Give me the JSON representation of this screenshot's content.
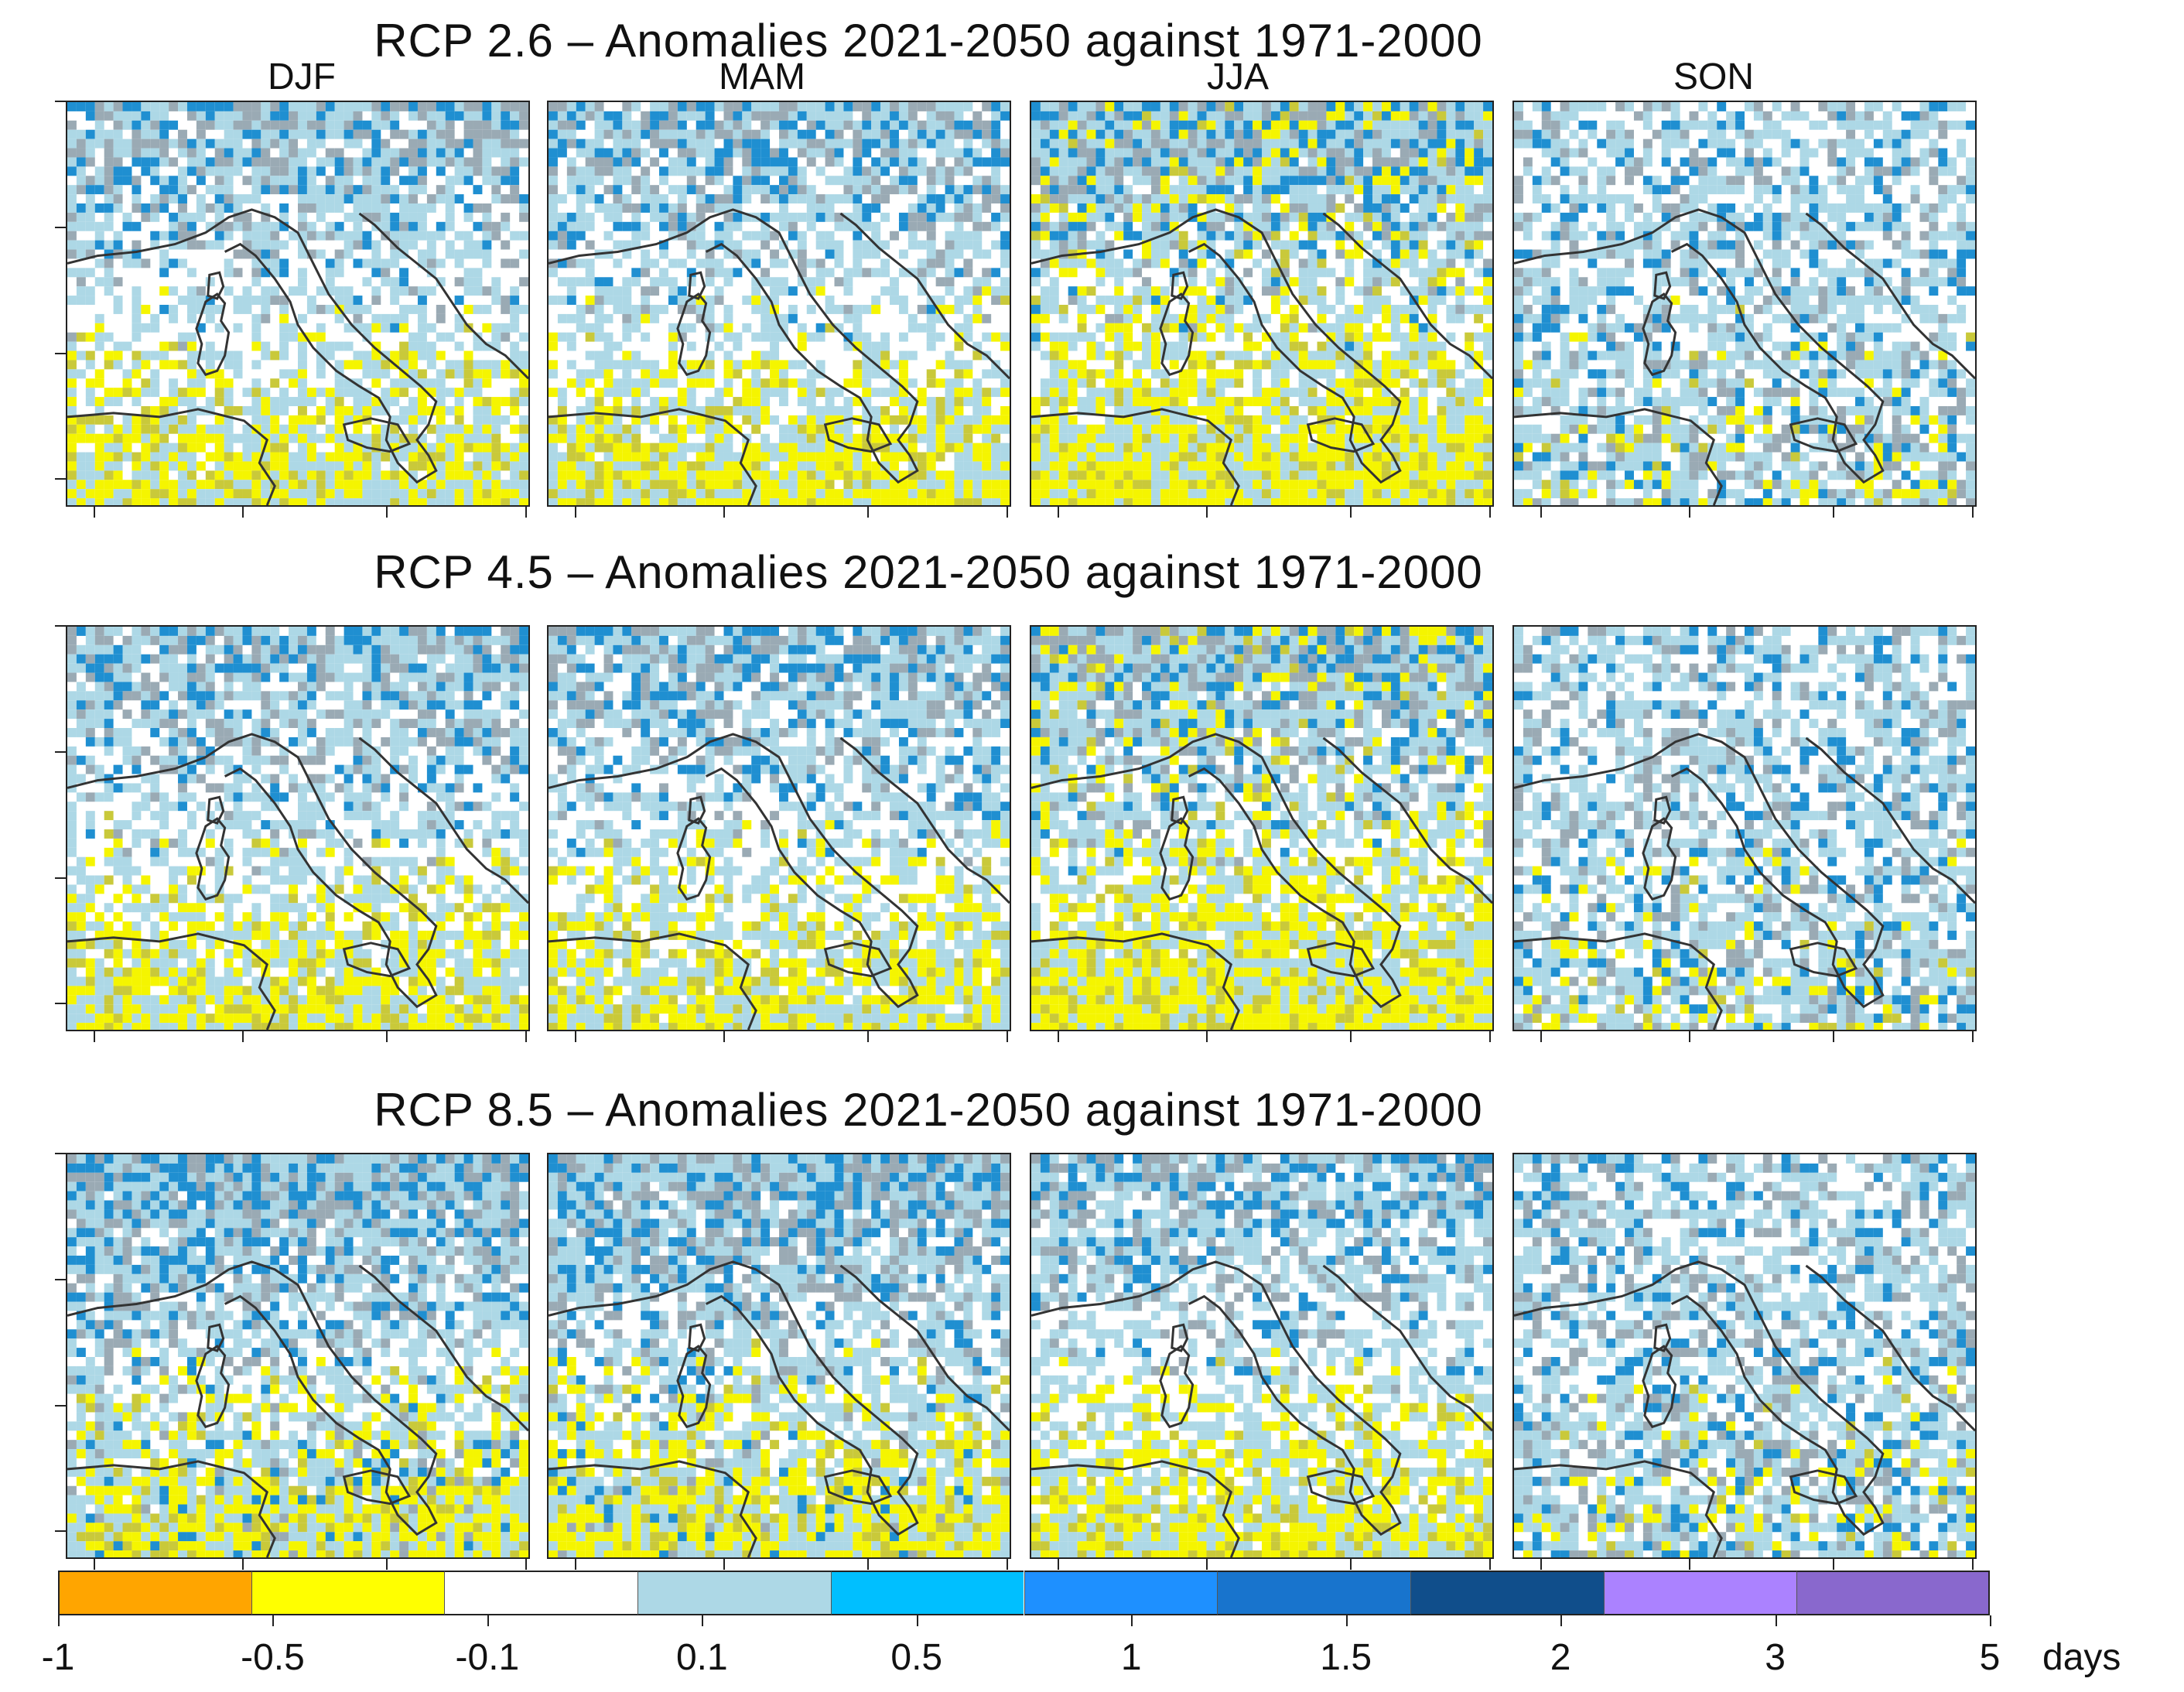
{
  "rows": [
    {
      "title": "RCP 2.6 – Anomalies 2021-2050 against 1971-2000"
    },
    {
      "title": "RCP 4.5 – Anomalies 2021-2050 against 1971-2000"
    },
    {
      "title": "RCP 8.5 – Anomalies 2021-2050 against 1971-2000"
    }
  ],
  "seasons": [
    "DJF",
    "MAM",
    "JJA",
    "SON"
  ],
  "colorbar": {
    "labels": [
      "-1",
      "-0.5",
      "-0.1",
      "0.1",
      "0.5",
      "1",
      "1.5",
      "2",
      "3",
      "5"
    ],
    "unit": "days",
    "colors": [
      "#FFA500",
      "#FFFF00",
      "#FFFFFF",
      "#ADD8E6",
      "#00BFFF",
      "#1E90FF",
      "#1874CD",
      "#104E8B",
      "#AB82FF",
      "#8968CD"
    ]
  },
  "map_colors": {
    "yellow": "#F5F500",
    "olive": "#C9C93A",
    "lightblue": "#ADD8E6",
    "grey": "#9AAAB4",
    "blue": "#1F8FD1",
    "white": "#FFFFFF",
    "coast": "#333333"
  }
}
